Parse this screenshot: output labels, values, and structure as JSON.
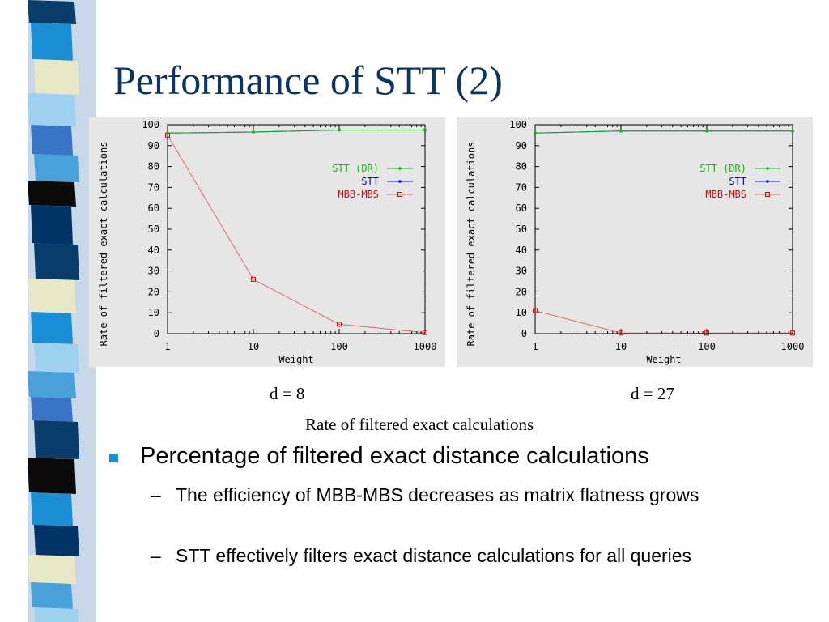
{
  "slide": {
    "title": "Performance of STT (2)",
    "caption_left": "d = 8",
    "caption_right": "d = 27",
    "caption_main": "Rate of filtered exact calculations",
    "bullet": "Percentage of filtered exact distance calculations",
    "subbullets": [
      "The efficiency of MBB-MBS decreases as matrix flatness grows",
      "STT effectively filters exact distance calculations for all queries"
    ],
    "dash": "–"
  },
  "colors": {
    "title": "#0b3565",
    "bullet": "#1a8fd6",
    "stt_dr": "#00c000",
    "stt": "#0000e0",
    "mbb_mbs": "#e00000",
    "plot_bg": "#e6e6e6",
    "stripe": [
      "#1a8fd6",
      "#0b3d6b",
      "#9fd0ef",
      "#e8e8c8",
      "#3a74c4",
      "#0a0a0a",
      "#4aa0d8",
      "#003366"
    ]
  },
  "chart_data": [
    {
      "type": "line",
      "xscale": "log",
      "x": [
        1,
        10,
        100,
        1000
      ],
      "xlim": [
        1,
        1000
      ],
      "ylim": [
        0,
        100
      ],
      "yticks": [
        0,
        10,
        20,
        30,
        40,
        50,
        60,
        70,
        80,
        90,
        100
      ],
      "xticks": [
        "1",
        "10",
        "100",
        "1000"
      ],
      "xlabel": "Weight",
      "ylabel": "Rate of filtered exact calculations",
      "legend_position": "upper-right",
      "series": [
        {
          "name": "STT (DR)",
          "values": [
            96,
            96.5,
            97.5,
            97.5
          ]
        },
        {
          "name": "STT",
          "values": [
            96,
            96.5,
            97.5,
            97.5
          ]
        },
        {
          "name": "MBB-MBS",
          "values": [
            95,
            26,
            4.5,
            0.5
          ]
        }
      ]
    },
    {
      "type": "line",
      "xscale": "log",
      "x": [
        1,
        10,
        100,
        1000
      ],
      "xlim": [
        1,
        1000
      ],
      "ylim": [
        0,
        100
      ],
      "yticks": [
        0,
        10,
        20,
        30,
        40,
        50,
        60,
        70,
        80,
        90,
        100
      ],
      "xticks": [
        "1",
        "10",
        "100",
        "1000"
      ],
      "xlabel": "Weight",
      "ylabel": "Rate of filtered exact calculations",
      "legend_position": "upper-right",
      "series": [
        {
          "name": "STT (DR)",
          "values": [
            96,
            97,
            97,
            97
          ]
        },
        {
          "name": "STT",
          "values": [
            96,
            97,
            97,
            97
          ]
        },
        {
          "name": "MBB-MBS",
          "values": [
            11,
            0.3,
            0.3,
            0.3
          ]
        }
      ]
    }
  ]
}
